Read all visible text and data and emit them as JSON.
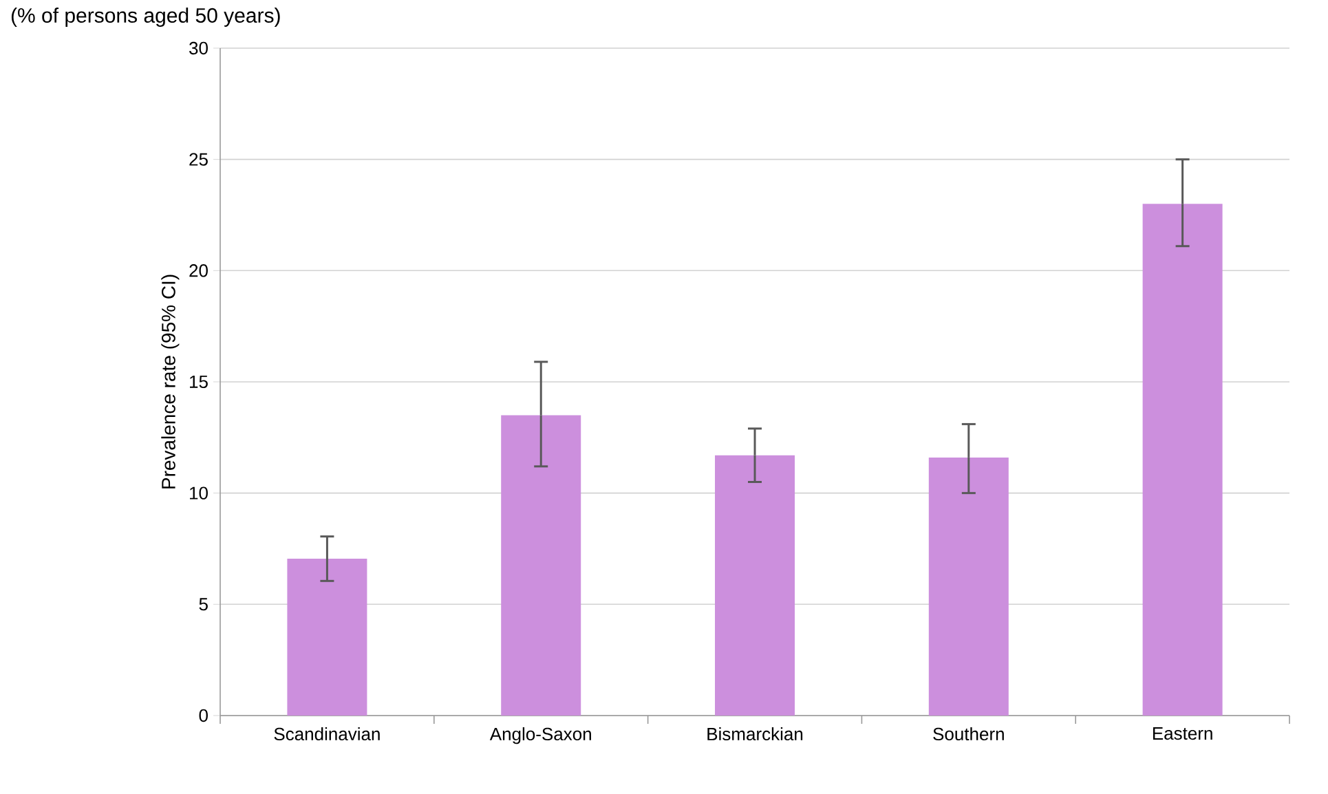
{
  "chart_data": {
    "type": "bar",
    "title": "(% of persons aged 50 years)",
    "ylabel": "Prevalence rate (95% CI)",
    "categories": [
      "Scandinavian",
      "Anglo-Saxon",
      "Bismarckian",
      "Southern",
      "Eastern"
    ],
    "values": [
      7.05,
      13.5,
      11.7,
      11.6,
      23.0
    ],
    "errors": [
      [
        6.05,
        8.05
      ],
      [
        11.2,
        15.9
      ],
      [
        10.5,
        12.9
      ],
      [
        10.0,
        13.1
      ],
      [
        21.1,
        25.0
      ]
    ],
    "color": "#cc8fdd",
    "ylim": [
      0,
      30
    ],
    "yticks": [
      0,
      5,
      10,
      15,
      20,
      25,
      30
    ],
    "grid": "y"
  }
}
